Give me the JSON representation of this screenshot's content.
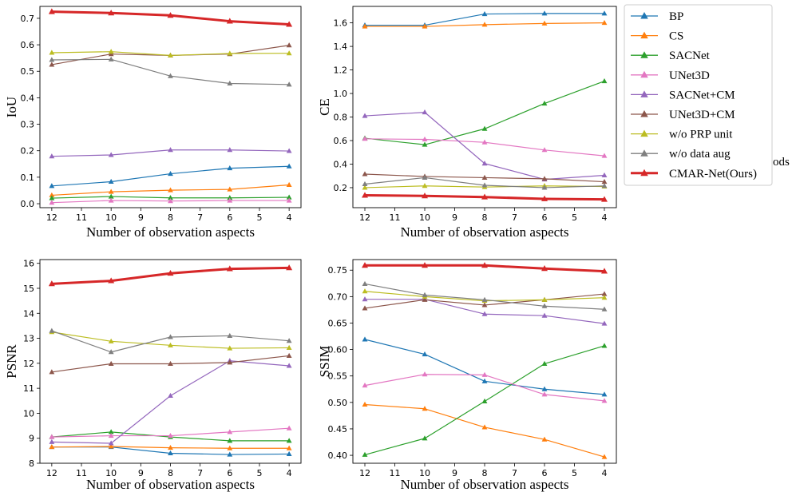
{
  "legend": {
    "entries": [
      {
        "name": "BP",
        "color": "#1f77b4"
      },
      {
        "name": "CS",
        "color": "#ff7f0e"
      },
      {
        "name": "SACNet",
        "color": "#2ca02c"
      },
      {
        "name": "UNet3D",
        "color": "#e377c2"
      },
      {
        "name": "SACNet+CM",
        "color": "#9467bd"
      },
      {
        "name": "UNet3D+CM",
        "color": "#8c564b"
      },
      {
        "name": "w/o PRP unit",
        "color": "#bcbd22"
      },
      {
        "name": "w/o data aug",
        "color": "#7f7f7f"
      },
      {
        "name": "CMAR-Net(Ours)",
        "color": "#d62728"
      }
    ]
  },
  "clipped_text": "ods",
  "chart_data": [
    {
      "type": "line",
      "id": "iou",
      "xlabel": "Number of observation aspects",
      "ylabel": "IoU",
      "x": [
        12,
        10,
        8,
        6,
        4
      ],
      "xticks": [
        12,
        11,
        10,
        9,
        8,
        7,
        6,
        5,
        4
      ],
      "xlim": [
        12.4,
        3.6
      ],
      "ylim": [
        -0.015,
        0.745
      ],
      "yticks": [
        0.0,
        0.1,
        0.2,
        0.3,
        0.4,
        0.5,
        0.6,
        0.7
      ],
      "ytick_labels": [
        "0.0",
        "0.1",
        "0.2",
        "0.3",
        "0.4",
        "0.5",
        "0.6",
        "0.7"
      ],
      "grid": false,
      "series": [
        {
          "name": "BP",
          "values": [
            0.067,
            0.083,
            0.113,
            0.134,
            0.141
          ]
        },
        {
          "name": "CS",
          "values": [
            0.032,
            0.045,
            0.051,
            0.054,
            0.071
          ]
        },
        {
          "name": "SACNet",
          "values": [
            0.021,
            0.027,
            0.022,
            0.022,
            0.024
          ]
        },
        {
          "name": "UNet3D",
          "values": [
            0.004,
            0.012,
            0.01,
            0.012,
            0.012
          ]
        },
        {
          "name": "SACNet+CM",
          "values": [
            0.179,
            0.184,
            0.203,
            0.203,
            0.199
          ]
        },
        {
          "name": "UNet3D+CM",
          "values": [
            0.525,
            0.565,
            0.56,
            0.565,
            0.598
          ]
        },
        {
          "name": "w/o PRP unit",
          "values": [
            0.57,
            0.574,
            0.56,
            0.567,
            0.568
          ]
        },
        {
          "name": "w/o data aug",
          "values": [
            0.543,
            0.545,
            0.482,
            0.454,
            0.45
          ]
        },
        {
          "name": "CMAR-Net(Ours)",
          "values": [
            0.725,
            0.72,
            0.711,
            0.689,
            0.677
          ]
        }
      ]
    },
    {
      "type": "line",
      "id": "ce",
      "xlabel": "Number of observation aspects",
      "ylabel": "CE",
      "x": [
        12,
        10,
        8,
        6,
        4
      ],
      "xticks": [
        12,
        11,
        10,
        9,
        8,
        7,
        6,
        5,
        4
      ],
      "xlim": [
        12.4,
        3.6
      ],
      "ylim": [
        0.03,
        1.74
      ],
      "yticks": [
        0.2,
        0.4,
        0.6,
        0.8,
        1.0,
        1.2,
        1.4,
        1.6
      ],
      "ytick_labels": [
        "0.2",
        "0.4",
        "0.6",
        "0.8",
        "1.0",
        "1.2",
        "1.4",
        "1.6"
      ],
      "grid": false,
      "series": [
        {
          "name": "BP",
          "values": [
            1.58,
            1.58,
            1.675,
            1.68,
            1.68
          ]
        },
        {
          "name": "CS",
          "values": [
            1.57,
            1.57,
            1.585,
            1.595,
            1.6
          ]
        },
        {
          "name": "SACNet",
          "values": [
            0.62,
            0.565,
            0.7,
            0.915,
            1.105
          ]
        },
        {
          "name": "UNet3D",
          "values": [
            0.615,
            0.61,
            0.585,
            0.52,
            0.47
          ]
        },
        {
          "name": "SACNet+CM",
          "values": [
            0.81,
            0.84,
            0.405,
            0.27,
            0.305
          ]
        },
        {
          "name": "UNet3D+CM",
          "values": [
            0.315,
            0.295,
            0.285,
            0.275,
            0.25
          ]
        },
        {
          "name": "w/o PRP unit",
          "values": [
            0.2,
            0.215,
            0.205,
            0.215,
            0.21
          ]
        },
        {
          "name": "w/o data aug",
          "values": [
            0.23,
            0.285,
            0.22,
            0.2,
            0.215
          ]
        },
        {
          "name": "CMAR-Net(Ours)",
          "values": [
            0.135,
            0.13,
            0.12,
            0.105,
            0.1
          ]
        }
      ]
    },
    {
      "type": "line",
      "id": "psnr",
      "xlabel": "Number of observation aspects",
      "ylabel": "PSNR",
      "x": [
        12,
        10,
        8,
        6,
        4
      ],
      "xticks": [
        12,
        11,
        10,
        9,
        8,
        7,
        6,
        5,
        4
      ],
      "xlim": [
        12.4,
        3.6
      ],
      "ylim": [
        8.0,
        16.15
      ],
      "yticks": [
        8,
        9,
        10,
        11,
        12,
        13,
        14,
        15,
        16
      ],
      "ytick_labels": [
        "8",
        "9",
        "10",
        "11",
        "12",
        "13",
        "14",
        "15",
        "16"
      ],
      "grid": false,
      "series": [
        {
          "name": "BP",
          "values": [
            8.65,
            8.65,
            8.4,
            8.35,
            8.37
          ]
        },
        {
          "name": "CS",
          "values": [
            8.65,
            8.67,
            8.62,
            8.6,
            8.6
          ]
        },
        {
          "name": "SACNet",
          "values": [
            9.05,
            9.25,
            9.05,
            8.9,
            8.9
          ]
        },
        {
          "name": "UNet3D",
          "values": [
            9.05,
            9.1,
            9.1,
            9.25,
            9.4
          ]
        },
        {
          "name": "SACNet+CM",
          "values": [
            8.85,
            8.8,
            10.7,
            12.1,
            11.9
          ]
        },
        {
          "name": "UNet3D+CM",
          "values": [
            11.65,
            11.98,
            11.98,
            12.03,
            12.3
          ]
        },
        {
          "name": "w/o PRP unit",
          "values": [
            13.25,
            12.88,
            12.72,
            12.6,
            12.62
          ]
        },
        {
          "name": "w/o data aug",
          "values": [
            13.3,
            12.45,
            13.05,
            13.1,
            12.9
          ]
        },
        {
          "name": "CMAR-Net(Ours)",
          "values": [
            15.18,
            15.3,
            15.6,
            15.78,
            15.82
          ]
        }
      ]
    },
    {
      "type": "line",
      "id": "ssim",
      "xlabel": "Number of observation aspects",
      "ylabel": "SSIM",
      "x": [
        12,
        10,
        8,
        6,
        4
      ],
      "xticks": [
        12,
        11,
        10,
        9,
        8,
        7,
        6,
        5,
        4
      ],
      "xlim": [
        12.4,
        3.6
      ],
      "ylim": [
        0.385,
        0.77
      ],
      "yticks": [
        0.4,
        0.45,
        0.5,
        0.55,
        0.6,
        0.65,
        0.7,
        0.75
      ],
      "ytick_labels": [
        "0.40",
        "0.45",
        "0.50",
        "0.55",
        "0.60",
        "0.65",
        "0.70",
        "0.75"
      ],
      "grid": false,
      "series": [
        {
          "name": "BP",
          "values": [
            0.619,
            0.591,
            0.54,
            0.525,
            0.515
          ]
        },
        {
          "name": "CS",
          "values": [
            0.496,
            0.488,
            0.453,
            0.43,
            0.397
          ]
        },
        {
          "name": "SACNet",
          "values": [
            0.401,
            0.432,
            0.502,
            0.573,
            0.607
          ]
        },
        {
          "name": "UNet3D",
          "values": [
            0.532,
            0.553,
            0.552,
            0.515,
            0.503
          ]
        },
        {
          "name": "SACNet+CM",
          "values": [
            0.695,
            0.695,
            0.667,
            0.664,
            0.649
          ]
        },
        {
          "name": "UNet3D+CM",
          "values": [
            0.678,
            0.694,
            0.684,
            0.694,
            0.705
          ]
        },
        {
          "name": "w/o PRP unit",
          "values": [
            0.71,
            0.7,
            0.692,
            0.694,
            0.698
          ]
        },
        {
          "name": "w/o data aug",
          "values": [
            0.724,
            0.703,
            0.694,
            0.682,
            0.676
          ]
        },
        {
          "name": "CMAR-Net(Ours)",
          "values": [
            0.759,
            0.759,
            0.759,
            0.753,
            0.748
          ]
        }
      ]
    }
  ]
}
